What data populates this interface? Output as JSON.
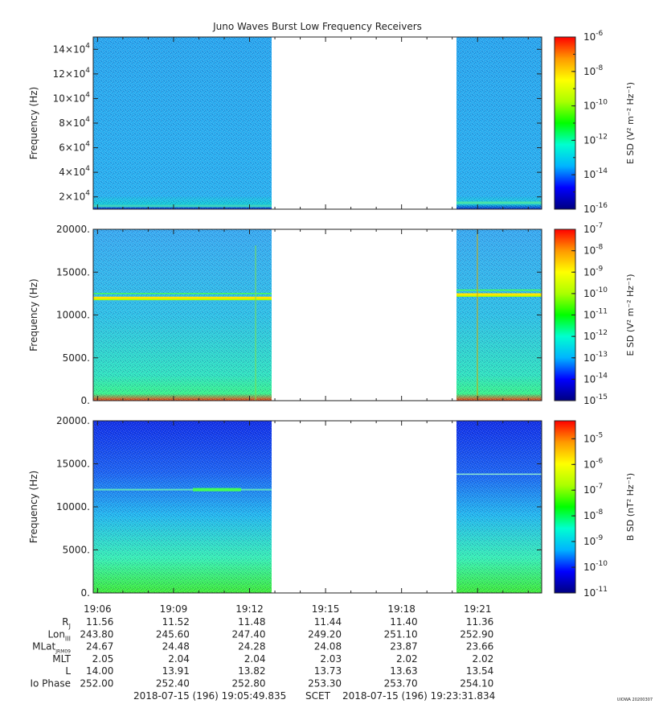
{
  "chart_data": {
    "type": "heatmap",
    "title": "Juno Waves Burst Low Frequency Receivers",
    "time_axis": {
      "tick_labels": [
        "19:06",
        "19:09",
        "19:12",
        "19:15",
        "19:18",
        "19:21"
      ],
      "range_minutes": [
        0,
        17.7
      ],
      "data_gap": [
        "19:12:57",
        "19:20:25"
      ]
    },
    "panels": [
      {
        "ylabel": "Frequency (Hz)",
        "ylim": [
          10000,
          150000
        ],
        "y_ticks": [
          {
            "value": 20000,
            "mant": "2×10",
            "exp": "4"
          },
          {
            "value": 40000,
            "mant": "4×10",
            "exp": "4"
          },
          {
            "value": 60000,
            "mant": "6×10",
            "exp": "4"
          },
          {
            "value": 80000,
            "mant": "8×10",
            "exp": "4"
          },
          {
            "value": 100000,
            "mant": "10×10",
            "exp": "4"
          },
          {
            "value": 120000,
            "mant": "12×10",
            "exp": "4"
          },
          {
            "value": 140000,
            "mant": "14×10",
            "exp": "4"
          }
        ],
        "colorbar": {
          "label": "E SD (V² m⁻² Hz⁻¹)",
          "log_min": -16,
          "log_max": -6,
          "tick_exps": [
            "-6",
            "-8",
            "-10",
            "-12",
            "-14",
            "-16"
          ]
        }
      },
      {
        "ylabel": "Frequency (Hz)",
        "ylim": [
          0,
          20000
        ],
        "y_ticks": [
          {
            "value": 0,
            "label": "0."
          },
          {
            "value": 5000,
            "label": "5000."
          },
          {
            "value": 10000,
            "label": "10000."
          },
          {
            "value": 15000,
            "label": "15000."
          },
          {
            "value": 20000,
            "label": "20000."
          }
        ],
        "colorbar": {
          "label": "E SD (V² m⁻² Hz⁻¹)",
          "log_min": -15,
          "log_max": -7,
          "tick_exps": [
            "-7",
            "-8",
            "-9",
            "-10",
            "-11",
            "-12",
            "-13",
            "-14",
            "-15"
          ]
        }
      },
      {
        "ylabel": "Frequency (Hz)",
        "ylim": [
          0,
          20000
        ],
        "y_ticks": [
          {
            "value": 0,
            "label": "0."
          },
          {
            "value": 5000,
            "label": "5000."
          },
          {
            "value": 10000,
            "label": "10000."
          },
          {
            "value": 15000,
            "label": "15000."
          },
          {
            "value": 20000,
            "label": "20000."
          }
        ],
        "colorbar": {
          "label": "B SD (nT² Hz⁻¹)",
          "log_min": -11,
          "log_max": -4.3,
          "tick_exps": [
            "-5",
            "-6",
            "-7",
            "-8",
            "-9",
            "-10",
            "-11"
          ]
        }
      }
    ],
    "ephemeris": [
      {
        "label": "R",
        "sub": "J",
        "values": [
          "11.56",
          "11.52",
          "11.48",
          "11.44",
          "11.40",
          "11.36"
        ]
      },
      {
        "label": "Lon",
        "sub": "III",
        "values": [
          "243.80",
          "245.60",
          "247.40",
          "249.20",
          "251.10",
          "252.90"
        ]
      },
      {
        "label": "MLat",
        "sub": "JRM09",
        "values": [
          "24.67",
          "24.48",
          "24.28",
          "24.08",
          "23.87",
          "23.66"
        ]
      },
      {
        "label": "MLT",
        "sub": "",
        "values": [
          "2.05",
          "2.04",
          "2.04",
          "2.03",
          "2.02",
          "2.02"
        ]
      },
      {
        "label": "L",
        "sub": "",
        "values": [
          "14.00",
          "13.91",
          "13.82",
          "13.73",
          "13.63",
          "13.54"
        ]
      },
      {
        "label": "Io Phase",
        "sub": "",
        "values": [
          "252.00",
          "252.40",
          "252.80",
          "253.30",
          "253.70",
          "254.10"
        ]
      }
    ],
    "footer": {
      "start": "2018-07-15 (196) 19:05:49.835",
      "scet": "SCET",
      "end": "2018-07-15 (196) 19:23:31.834",
      "stamp": "UIOWA 20200307"
    }
  },
  "colors": {
    "scale": [
      "#000080",
      "#0000ff",
      "#00b4ff",
      "#00ffd0",
      "#00ff00",
      "#aaff00",
      "#ffff00",
      "#ff9900",
      "#ff0000"
    ]
  }
}
